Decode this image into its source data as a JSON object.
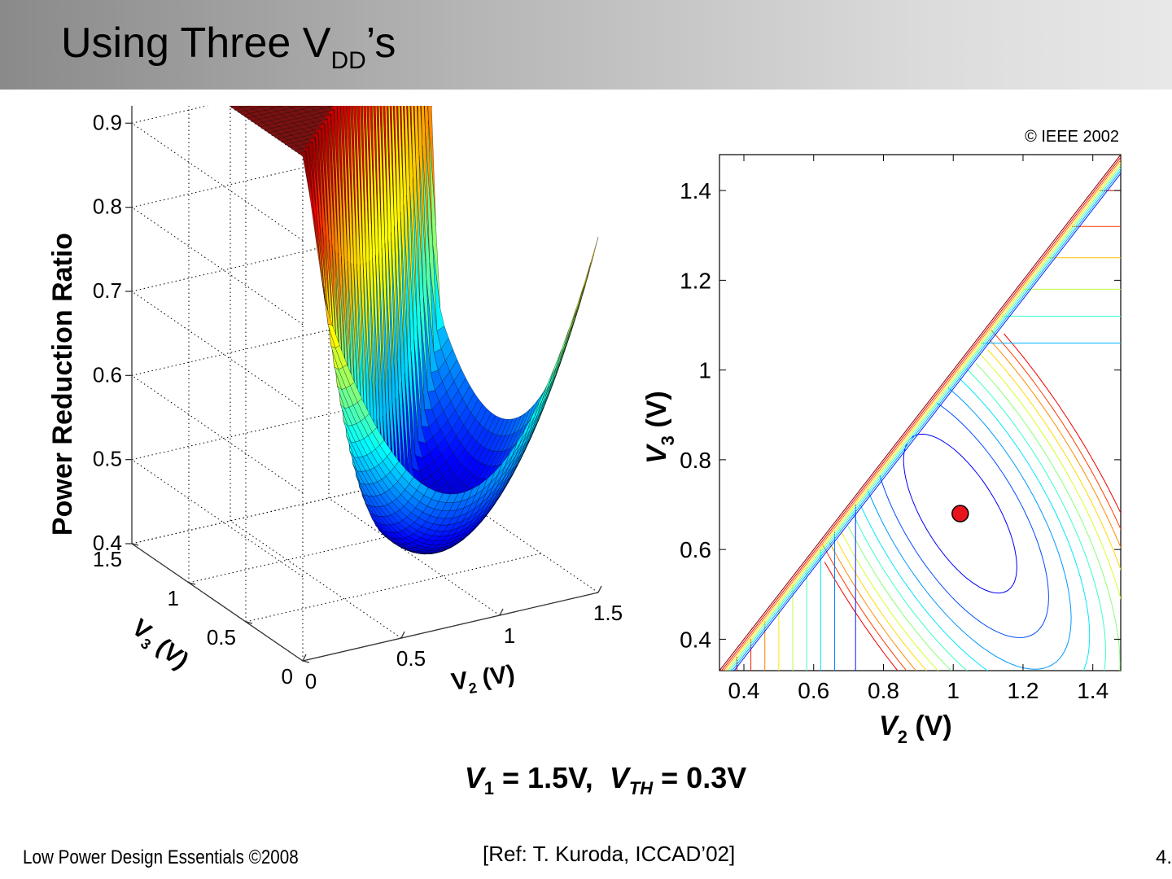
{
  "slide": {
    "title_main": "Using Three V",
    "title_sub": "DD",
    "title_suffix": "’s",
    "copyright": "© IEEE 2002",
    "params": {
      "v1_label": "V",
      "v1_sub": "1",
      "v1_value": " = 1.5V,  ",
      "vth_label": "V",
      "vth_sub": "TH",
      "vth_value": " = 0.3V"
    },
    "footer_left": "Low Power Design Essentials ©2008",
    "footer_ref": "[Ref: T. Kuroda, ICCAD’02]",
    "page_number": "4."
  },
  "colors": {
    "accent_marker": "#e8141e",
    "surface_top": "#7a1010"
  },
  "chart_data": [
    {
      "type": "surface",
      "zlabel": "Power Reduction Ratio",
      "xlabel": "V2 (V)",
      "ylabel": "V3 (V)",
      "xlim": [
        0,
        1.5
      ],
      "ylim": [
        0,
        1.5
      ],
      "zlim": [
        0.4,
        1
      ],
      "xticks": [
        "0",
        "0.5",
        "1",
        "1.5"
      ],
      "yticks": [
        "0",
        "0.5",
        "1",
        "1.5"
      ],
      "zticks": [
        "0.4",
        "0.5",
        "0.6",
        "0.7",
        "0.8",
        "0.9",
        "1"
      ],
      "minimum": {
        "v2": 1.02,
        "v3": 0.68,
        "ratio": 0.42
      },
      "grid": true
    },
    {
      "type": "contour",
      "xlabel": "V2 (V)",
      "ylabel": "V3 (V)",
      "xlim": [
        0.33,
        1.48
      ],
      "ylim": [
        0.33,
        1.48
      ],
      "xticks": [
        "0.4",
        "0.6",
        "0.8",
        "1",
        "1.2",
        "1.4"
      ],
      "yticks": [
        "0.4",
        "0.6",
        "0.8",
        "1",
        "1.2",
        "1.4"
      ],
      "optimum": {
        "v2": 1.02,
        "v3": 0.68
      },
      "levels": [
        0.45,
        0.5,
        0.55,
        0.6,
        0.65,
        0.7,
        0.75,
        0.8,
        0.85,
        0.9,
        0.95
      ]
    }
  ]
}
